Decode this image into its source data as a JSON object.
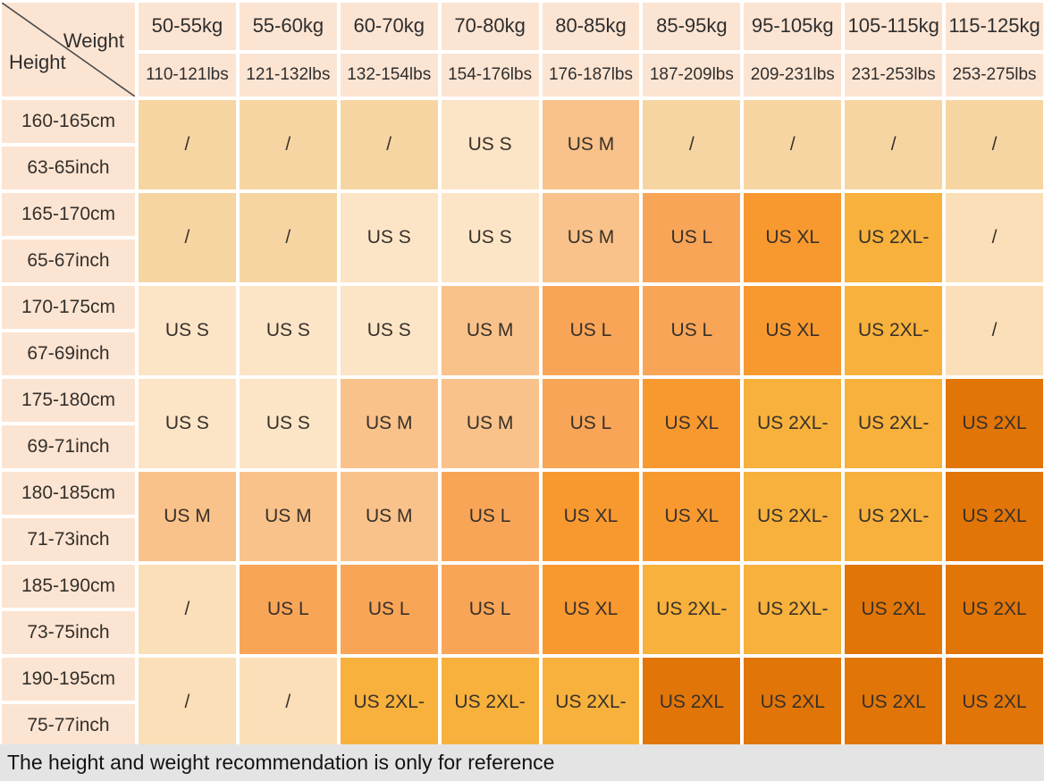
{
  "corner": {
    "weight": "Weight",
    "height": "Height"
  },
  "columns": [
    {
      "kg": "50-55kg",
      "lbs": "110-121lbs"
    },
    {
      "kg": "55-60kg",
      "lbs": "121-132lbs"
    },
    {
      "kg": "60-70kg",
      "lbs": "132-154lbs"
    },
    {
      "kg": "70-80kg",
      "lbs": "154-176lbs"
    },
    {
      "kg": "80-85kg",
      "lbs": "176-187lbs"
    },
    {
      "kg": "85-95kg",
      "lbs": "187-209lbs"
    },
    {
      "kg": "95-105kg",
      "lbs": "209-231lbs"
    },
    {
      "kg": "105-115kg",
      "lbs": "231-253lbs"
    },
    {
      "kg": "115-125kg",
      "lbs": "253-275lbs"
    }
  ],
  "rows": [
    {
      "cm": "160-165cm",
      "inch": "63-65inch",
      "cells": [
        {
          "label": "/",
          "color": "na1"
        },
        {
          "label": "/",
          "color": "na1"
        },
        {
          "label": "/",
          "color": "na1"
        },
        {
          "label": "US S",
          "color": "S"
        },
        {
          "label": "US M",
          "color": "M"
        },
        {
          "label": "/",
          "color": "na1"
        },
        {
          "label": "/",
          "color": "na1"
        },
        {
          "label": "/",
          "color": "na1"
        },
        {
          "label": "/",
          "color": "na1"
        }
      ]
    },
    {
      "cm": "165-170cm",
      "inch": "65-67inch",
      "cells": [
        {
          "label": "/",
          "color": "na1"
        },
        {
          "label": "/",
          "color": "na1"
        },
        {
          "label": "US S",
          "color": "S"
        },
        {
          "label": "US S",
          "color": "S"
        },
        {
          "label": "US M",
          "color": "M"
        },
        {
          "label": "US L",
          "color": "L"
        },
        {
          "label": "US XL",
          "color": "XL"
        },
        {
          "label": "US 2XL-",
          "color": "XXLm"
        },
        {
          "label": "/",
          "color": "na2"
        }
      ]
    },
    {
      "cm": "170-175cm",
      "inch": "67-69inch",
      "cells": [
        {
          "label": "US S",
          "color": "S"
        },
        {
          "label": "US S",
          "color": "S"
        },
        {
          "label": "US S",
          "color": "S"
        },
        {
          "label": "US M",
          "color": "M"
        },
        {
          "label": "US L",
          "color": "L"
        },
        {
          "label": "US L",
          "color": "L"
        },
        {
          "label": "US XL",
          "color": "XL"
        },
        {
          "label": "US 2XL-",
          "color": "XXLm"
        },
        {
          "label": "/",
          "color": "na2"
        }
      ]
    },
    {
      "cm": "175-180cm",
      "inch": "69-71inch",
      "cells": [
        {
          "label": "US S",
          "color": "S"
        },
        {
          "label": "US S",
          "color": "S"
        },
        {
          "label": "US M",
          "color": "M"
        },
        {
          "label": "US M",
          "color": "M"
        },
        {
          "label": "US L",
          "color": "L"
        },
        {
          "label": "US XL",
          "color": "XL"
        },
        {
          "label": "US 2XL-",
          "color": "XXLm"
        },
        {
          "label": "US 2XL-",
          "color": "XXLm"
        },
        {
          "label": "US 2XL",
          "color": "XXL"
        }
      ]
    },
    {
      "cm": "180-185cm",
      "inch": "71-73inch",
      "cells": [
        {
          "label": "US M",
          "color": "M"
        },
        {
          "label": "US M",
          "color": "M"
        },
        {
          "label": "US M",
          "color": "M"
        },
        {
          "label": "US L",
          "color": "L"
        },
        {
          "label": "US XL",
          "color": "XL"
        },
        {
          "label": "US XL",
          "color": "XL"
        },
        {
          "label": "US 2XL-",
          "color": "XXLm"
        },
        {
          "label": "US 2XL-",
          "color": "XXLm"
        },
        {
          "label": "US 2XL",
          "color": "XXL"
        }
      ]
    },
    {
      "cm": "185-190cm",
      "inch": "73-75inch",
      "cells": [
        {
          "label": "/",
          "color": "na2"
        },
        {
          "label": "US L",
          "color": "L"
        },
        {
          "label": "US L",
          "color": "L"
        },
        {
          "label": "US L",
          "color": "L"
        },
        {
          "label": "US XL",
          "color": "XL"
        },
        {
          "label": "US 2XL-",
          "color": "XXLm"
        },
        {
          "label": "US 2XL-",
          "color": "XXLm"
        },
        {
          "label": "US 2XL",
          "color": "XXL"
        },
        {
          "label": "US 2XL",
          "color": "XXL"
        }
      ]
    },
    {
      "cm": "190-195cm",
      "inch": "75-77inch",
      "cells": [
        {
          "label": "/",
          "color": "na2"
        },
        {
          "label": "/",
          "color": "na2"
        },
        {
          "label": "US 2XL-",
          "color": "XXLm"
        },
        {
          "label": "US 2XL-",
          "color": "XXLm"
        },
        {
          "label": "US 2XL-",
          "color": "XXLm"
        },
        {
          "label": "US 2XL",
          "color": "XXL"
        },
        {
          "label": "US 2XL",
          "color": "XXL"
        },
        {
          "label": "US 2XL",
          "color": "XXL"
        },
        {
          "label": "US 2XL",
          "color": "XXL"
        }
      ]
    }
  ],
  "palette": {
    "header": "#fce4d2",
    "na1": "#f7d5a2",
    "na2": "#fadfb8",
    "S": "#fce4c6",
    "M": "#f9c28a",
    "L": "#f9a558",
    "XL": "#f8992f",
    "XXLm": "#f7b13c",
    "XXL": "#e27507"
  },
  "footer": {
    "note": "The height and weight recommendation is only for reference"
  },
  "chart_data": {
    "type": "table",
    "column_header": "Weight",
    "row_header": "Height",
    "columns_kg": [
      "50-55kg",
      "55-60kg",
      "60-70kg",
      "70-80kg",
      "80-85kg",
      "85-95kg",
      "95-105kg",
      "105-115kg",
      "115-125kg"
    ],
    "columns_lbs": [
      "110-121lbs",
      "121-132lbs",
      "132-154lbs",
      "154-176lbs",
      "176-187lbs",
      "187-209lbs",
      "209-231lbs",
      "231-253lbs",
      "253-275lbs"
    ],
    "rows_cm": [
      "160-165cm",
      "165-170cm",
      "170-175cm",
      "175-180cm",
      "180-185cm",
      "185-190cm",
      "190-195cm"
    ],
    "rows_inch": [
      "63-65inch",
      "65-67inch",
      "67-69inch",
      "69-71inch",
      "71-73inch",
      "73-75inch",
      "75-77inch"
    ],
    "matrix": [
      [
        "/",
        "/",
        "/",
        "US S",
        "US M",
        "/",
        "/",
        "/",
        "/"
      ],
      [
        "/",
        "/",
        "US S",
        "US S",
        "US M",
        "US L",
        "US XL",
        "US 2XL-",
        "/"
      ],
      [
        "US S",
        "US S",
        "US S",
        "US M",
        "US L",
        "US L",
        "US XL",
        "US 2XL-",
        "/"
      ],
      [
        "US S",
        "US S",
        "US M",
        "US M",
        "US L",
        "US XL",
        "US 2XL-",
        "US 2XL-",
        "US 2XL"
      ],
      [
        "US M",
        "US M",
        "US M",
        "US L",
        "US XL",
        "US XL",
        "US 2XL-",
        "US 2XL-",
        "US 2XL"
      ],
      [
        "/",
        "US L",
        "US L",
        "US L",
        "US XL",
        "US 2XL-",
        "US 2XL-",
        "US 2XL",
        "US 2XL"
      ],
      [
        "/",
        "/",
        "US 2XL-",
        "US 2XL-",
        "US 2XL-",
        "US 2XL",
        "US 2XL",
        "US 2XL",
        "US 2XL"
      ]
    ],
    "note": "The height and weight recommendation is only for reference",
    "legend_position": "none",
    "grid": true
  }
}
